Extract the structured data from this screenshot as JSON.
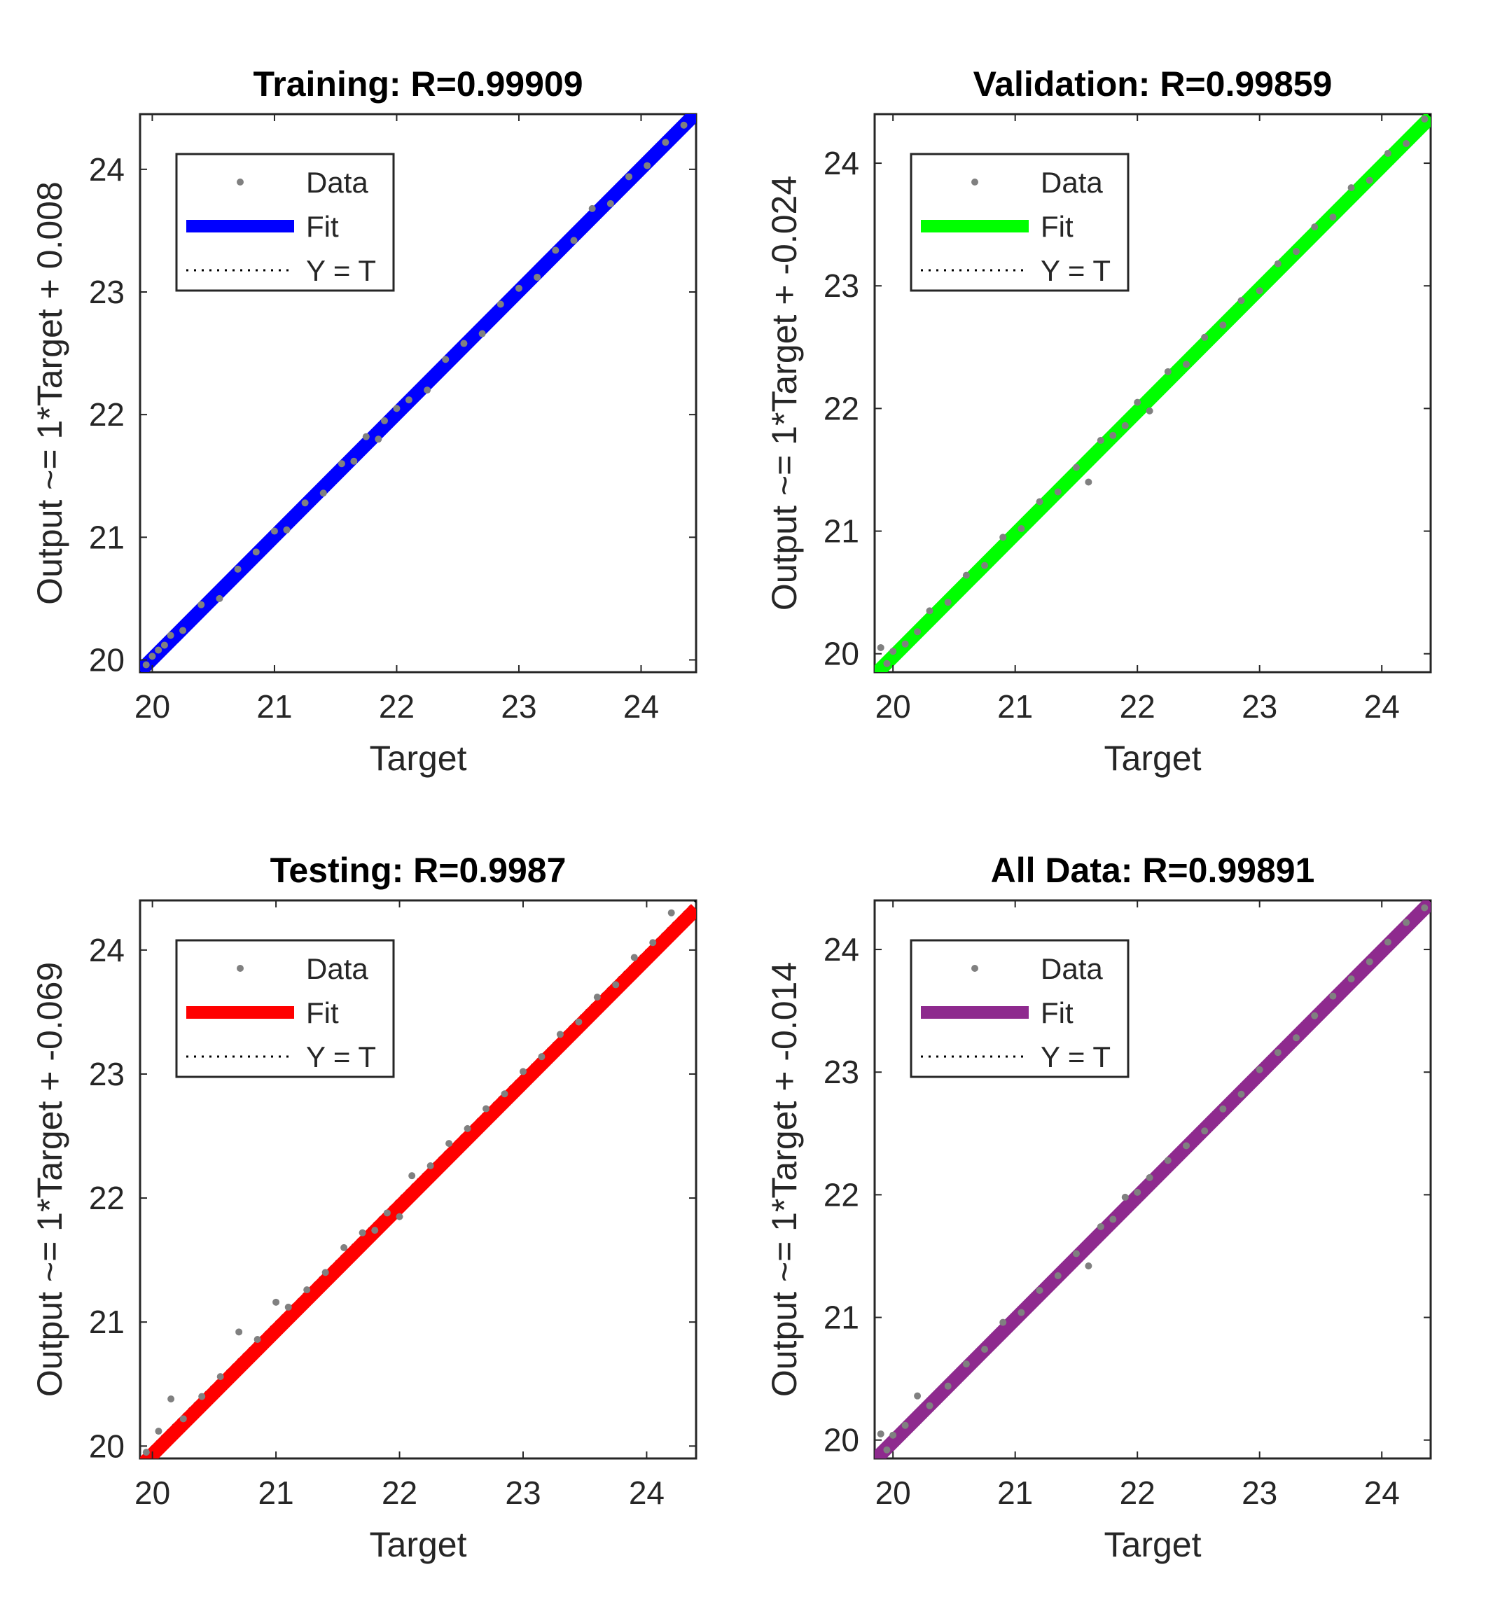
{
  "chart_data": [
    {
      "type": "scatter",
      "title": "Training: R=0.99909",
      "xlabel": "Target",
      "ylabel": "Output ~= 1*Target + 0.008",
      "xlim": [
        19.9,
        24.45
      ],
      "ylim": [
        19.9,
        24.45
      ],
      "xticks": [
        20,
        21,
        22,
        23,
        24
      ],
      "yticks": [
        20,
        21,
        22,
        23,
        24
      ],
      "grid": false,
      "legend_position": "top-left",
      "legend": [
        "Data",
        "Fit",
        "Y = T"
      ],
      "fit": {
        "slope": 1,
        "intercept": 0.008,
        "color": "#0000ff"
      },
      "data_color": "#808080",
      "series": [
        {
          "name": "Data",
          "x": [
            19.95,
            20.0,
            20.05,
            20.1,
            20.15,
            20.25,
            20.4,
            20.55,
            20.7,
            20.85,
            21.0,
            21.1,
            21.25,
            21.4,
            21.55,
            21.65,
            21.75,
            21.85,
            21.9,
            22.0,
            22.1,
            22.25,
            22.4,
            22.55,
            22.7,
            22.85,
            23.0,
            23.15,
            23.3,
            23.45,
            23.6,
            23.75,
            23.9,
            24.05,
            24.2,
            24.35
          ],
          "y": [
            19.96,
            20.03,
            20.08,
            20.12,
            20.2,
            20.24,
            20.45,
            20.5,
            20.74,
            20.88,
            21.05,
            21.06,
            21.28,
            21.36,
            21.6,
            21.62,
            21.82,
            21.8,
            21.95,
            22.05,
            22.12,
            22.2,
            22.45,
            22.58,
            22.66,
            22.9,
            23.03,
            23.12,
            23.34,
            23.42,
            23.68,
            23.72,
            23.94,
            24.03,
            24.22,
            24.36
          ]
        }
      ]
    },
    {
      "type": "scatter",
      "title": "Validation: R=0.99859",
      "xlabel": "Target",
      "ylabel": "Output ~= 1*Target + -0.024",
      "xlim": [
        19.85,
        24.4
      ],
      "ylim": [
        19.85,
        24.4
      ],
      "xticks": [
        20,
        21,
        22,
        23,
        24
      ],
      "yticks": [
        20,
        21,
        22,
        23,
        24
      ],
      "grid": false,
      "legend_position": "top-left",
      "legend": [
        "Data",
        "Fit",
        "Y = T"
      ],
      "fit": {
        "slope": 1,
        "intercept": -0.024,
        "color": "#00ff00"
      },
      "data_color": "#808080",
      "series": [
        {
          "name": "Data",
          "x": [
            19.9,
            19.95,
            20.0,
            20.1,
            20.2,
            20.3,
            20.45,
            20.6,
            20.75,
            20.9,
            21.05,
            21.2,
            21.35,
            21.5,
            21.6,
            21.7,
            21.8,
            21.9,
            22.0,
            22.1,
            22.25,
            22.4,
            22.55,
            22.7,
            22.85,
            23.0,
            23.15,
            23.3,
            23.45,
            23.6,
            23.75,
            23.9,
            24.05,
            24.2,
            24.35
          ],
          "y": [
            20.05,
            19.92,
            20.02,
            20.08,
            20.18,
            20.35,
            20.42,
            20.64,
            20.72,
            20.95,
            21.02,
            21.24,
            21.32,
            21.52,
            21.4,
            21.74,
            21.78,
            21.86,
            22.05,
            21.98,
            22.3,
            22.36,
            22.58,
            22.68,
            22.88,
            22.96,
            23.18,
            23.28,
            23.48,
            23.56,
            23.8,
            23.86,
            24.08,
            24.16,
            24.36
          ]
        }
      ]
    },
    {
      "type": "scatter",
      "title": "Testing: R=0.9987",
      "xlabel": "Target",
      "ylabel": "Output ~= 1*Target + -0.069",
      "xlim": [
        19.9,
        24.4
      ],
      "ylim": [
        19.9,
        24.4
      ],
      "xticks": [
        20,
        21,
        22,
        23,
        24
      ],
      "yticks": [
        20,
        21,
        22,
        23,
        24
      ],
      "grid": false,
      "legend_position": "top-left",
      "legend": [
        "Data",
        "Fit",
        "Y = T"
      ],
      "fit": {
        "slope": 1,
        "intercept": -0.069,
        "color": "#ff0000"
      },
      "data_color": "#808080",
      "series": [
        {
          "name": "Data",
          "x": [
            19.95,
            20.05,
            20.15,
            20.25,
            20.4,
            20.55,
            20.7,
            20.85,
            21.0,
            21.1,
            21.25,
            21.4,
            21.55,
            21.7,
            21.8,
            21.9,
            22.0,
            22.1,
            22.25,
            22.4,
            22.55,
            22.7,
            22.85,
            23.0,
            23.15,
            23.3,
            23.45,
            23.6,
            23.75,
            23.9,
            24.05,
            24.2
          ],
          "y": [
            19.95,
            20.12,
            20.38,
            20.22,
            20.4,
            20.56,
            20.92,
            20.86,
            21.16,
            21.12,
            21.26,
            21.4,
            21.6,
            21.72,
            21.74,
            21.88,
            21.85,
            22.18,
            22.26,
            22.44,
            22.56,
            22.72,
            22.84,
            23.02,
            23.14,
            23.32,
            23.42,
            23.62,
            23.72,
            23.94,
            24.06,
            24.3
          ]
        }
      ]
    },
    {
      "type": "scatter",
      "title": "All Data: R=0.99891",
      "xlabel": "Target",
      "ylabel": "Output ~= 1*Target + -0.014",
      "xlim": [
        19.85,
        24.4
      ],
      "ylim": [
        19.85,
        24.4
      ],
      "xticks": [
        20,
        21,
        22,
        23,
        24
      ],
      "yticks": [
        20,
        21,
        22,
        23,
        24
      ],
      "grid": false,
      "legend_position": "top-left",
      "legend": [
        "Data",
        "Fit",
        "Y = T"
      ],
      "fit": {
        "slope": 1,
        "intercept": -0.014,
        "color": "#8e2a8e"
      },
      "data_color": "#808080",
      "series": [
        {
          "name": "Data",
          "x": [
            19.9,
            19.95,
            20.0,
            20.1,
            20.2,
            20.3,
            20.45,
            20.6,
            20.75,
            20.9,
            21.05,
            21.2,
            21.35,
            21.5,
            21.6,
            21.7,
            21.8,
            21.9,
            22.0,
            22.1,
            22.25,
            22.4,
            22.55,
            22.7,
            22.85,
            23.0,
            23.15,
            23.3,
            23.45,
            23.6,
            23.75,
            23.9,
            24.05,
            24.2,
            24.35
          ],
          "y": [
            20.05,
            19.92,
            20.04,
            20.12,
            20.36,
            20.28,
            20.44,
            20.62,
            20.74,
            20.96,
            21.04,
            21.22,
            21.34,
            21.52,
            21.42,
            21.74,
            21.8,
            21.98,
            22.02,
            22.14,
            22.28,
            22.4,
            22.52,
            22.7,
            22.82,
            23.02,
            23.16,
            23.28,
            23.46,
            23.62,
            23.76,
            23.9,
            24.06,
            24.22,
            24.34
          ]
        }
      ]
    }
  ]
}
